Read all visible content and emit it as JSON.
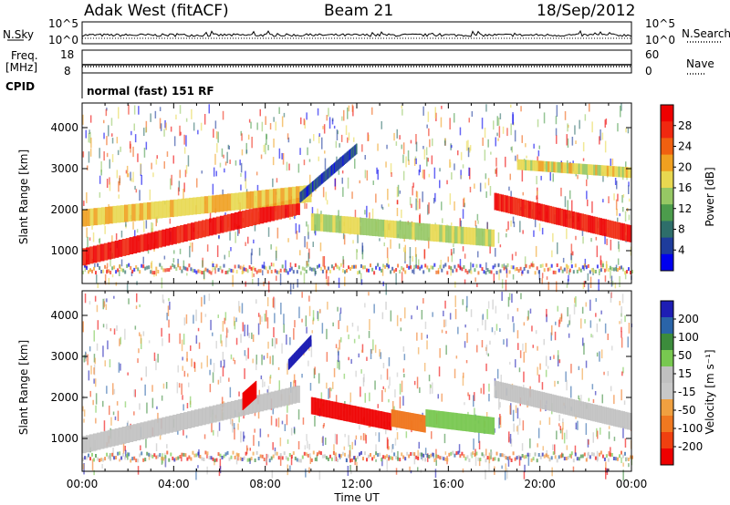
{
  "header": {
    "station": "Adak West (fitACF)",
    "beam": "Beam 21",
    "date": "18/Sep/2012"
  },
  "strip": {
    "nsky_label": "N.Sky",
    "nsky_ticks": [
      "10^5",
      "10^0"
    ],
    "nsearch_label": "N.Search",
    "nsearch_ticks": [
      "10^5",
      "10^0"
    ],
    "freq_label": "Freq.",
    "freq_unit": "[MHz]",
    "freq_ticks": [
      "18",
      "8"
    ],
    "nave_label": "Nave",
    "nave_ticks": [
      "60",
      "0"
    ],
    "cpid_label": "CPID",
    "cpid_value": "normal (fast) 151 RF"
  },
  "colors": {
    "power": [
      "#0000ee",
      "#1e3c9c",
      "#2e6e6a",
      "#4c9c4c",
      "#96c864",
      "#e8d850",
      "#f0a020",
      "#f06010",
      "#f02810",
      "#ee0000"
    ],
    "velocity": [
      "#1e1eb4",
      "#2a64a8",
      "#3c8c3c",
      "#78c850",
      "#c0c0c0",
      "#c8c8c8",
      "#f0a040",
      "#f07820",
      "#f04010",
      "#ee0000"
    ]
  },
  "chart_data": [
    {
      "type": "heatmap",
      "ylabel": "Slant Range [km]",
      "xlabel": "",
      "y_ticks": [
        1000,
        2000,
        3000,
        4000
      ],
      "ylim": [
        200,
        4600
      ],
      "x_ticks": [
        "00:00",
        "04:00",
        "08:00",
        "12:00",
        "16:00",
        "20:00",
        "00:00"
      ],
      "xlim_hours": [
        0,
        24
      ],
      "colorbar": {
        "label": "Power [dB]",
        "ticks": [
          4,
          8,
          12,
          16,
          20,
          24,
          28
        ],
        "range": [
          0,
          32
        ]
      },
      "features": [
        {
          "start_hours": 0,
          "end_hours": 9.5,
          "range_start_km": 850,
          "range_end_km": 2100,
          "level": 0.9
        },
        {
          "start_hours": 0,
          "end_hours": 10,
          "range_start_km": 1800,
          "range_end_km": 2400,
          "level": 0.6
        },
        {
          "start_hours": 10,
          "end_hours": 18,
          "range_start_km": 1700,
          "range_end_km": 1300,
          "level": 0.5
        },
        {
          "start_hours": 18,
          "end_hours": 24,
          "range_start_km": 2200,
          "range_end_km": 1400,
          "level": 0.9
        },
        {
          "start_hours": 19,
          "end_hours": 24,
          "range_start_km": 3100,
          "range_end_km": 2900,
          "level": 0.55
        },
        {
          "start_hours": 9.5,
          "end_hours": 12,
          "range_start_km": 2300,
          "range_end_km": 3500,
          "level": 0.15
        }
      ]
    },
    {
      "type": "heatmap",
      "ylabel": "Slant Range [km]",
      "xlabel": "Time UT",
      "y_ticks": [
        1000,
        2000,
        3000,
        4000
      ],
      "ylim": [
        200,
        4600
      ],
      "x_ticks": [
        "00:00",
        "04:00",
        "08:00",
        "12:00",
        "16:00",
        "20:00",
        "00:00"
      ],
      "xlim_hours": [
        0,
        24
      ],
      "colorbar": {
        "label": "Velocity [m s⁻¹]",
        "ticks": [
          "200",
          "100",
          "50",
          "15",
          "-15",
          "-50",
          "-100",
          "-200"
        ]
      },
      "features": [
        {
          "start_hours": 0,
          "end_hours": 9.5,
          "range_start_km": 850,
          "range_end_km": 2100,
          "velocity": 0
        },
        {
          "start_hours": 10,
          "end_hours": 13.5,
          "range_start_km": 1800,
          "range_end_km": 1400,
          "velocity": -180
        },
        {
          "start_hours": 13.5,
          "end_hours": 15,
          "range_start_km": 1500,
          "range_end_km": 1350,
          "velocity": -80
        },
        {
          "start_hours": 15,
          "end_hours": 18,
          "range_start_km": 1500,
          "range_end_km": 1300,
          "velocity": 60
        },
        {
          "start_hours": 18,
          "end_hours": 24,
          "range_start_km": 2200,
          "range_end_km": 1400,
          "velocity": 0
        },
        {
          "start_hours": 9.0,
          "end_hours": 10.0,
          "range_start_km": 2800,
          "range_end_km": 3400,
          "velocity": 180
        },
        {
          "start_hours": 7,
          "end_hours": 7.6,
          "range_start_km": 1900,
          "range_end_km": 2200,
          "velocity": -150
        }
      ]
    }
  ]
}
